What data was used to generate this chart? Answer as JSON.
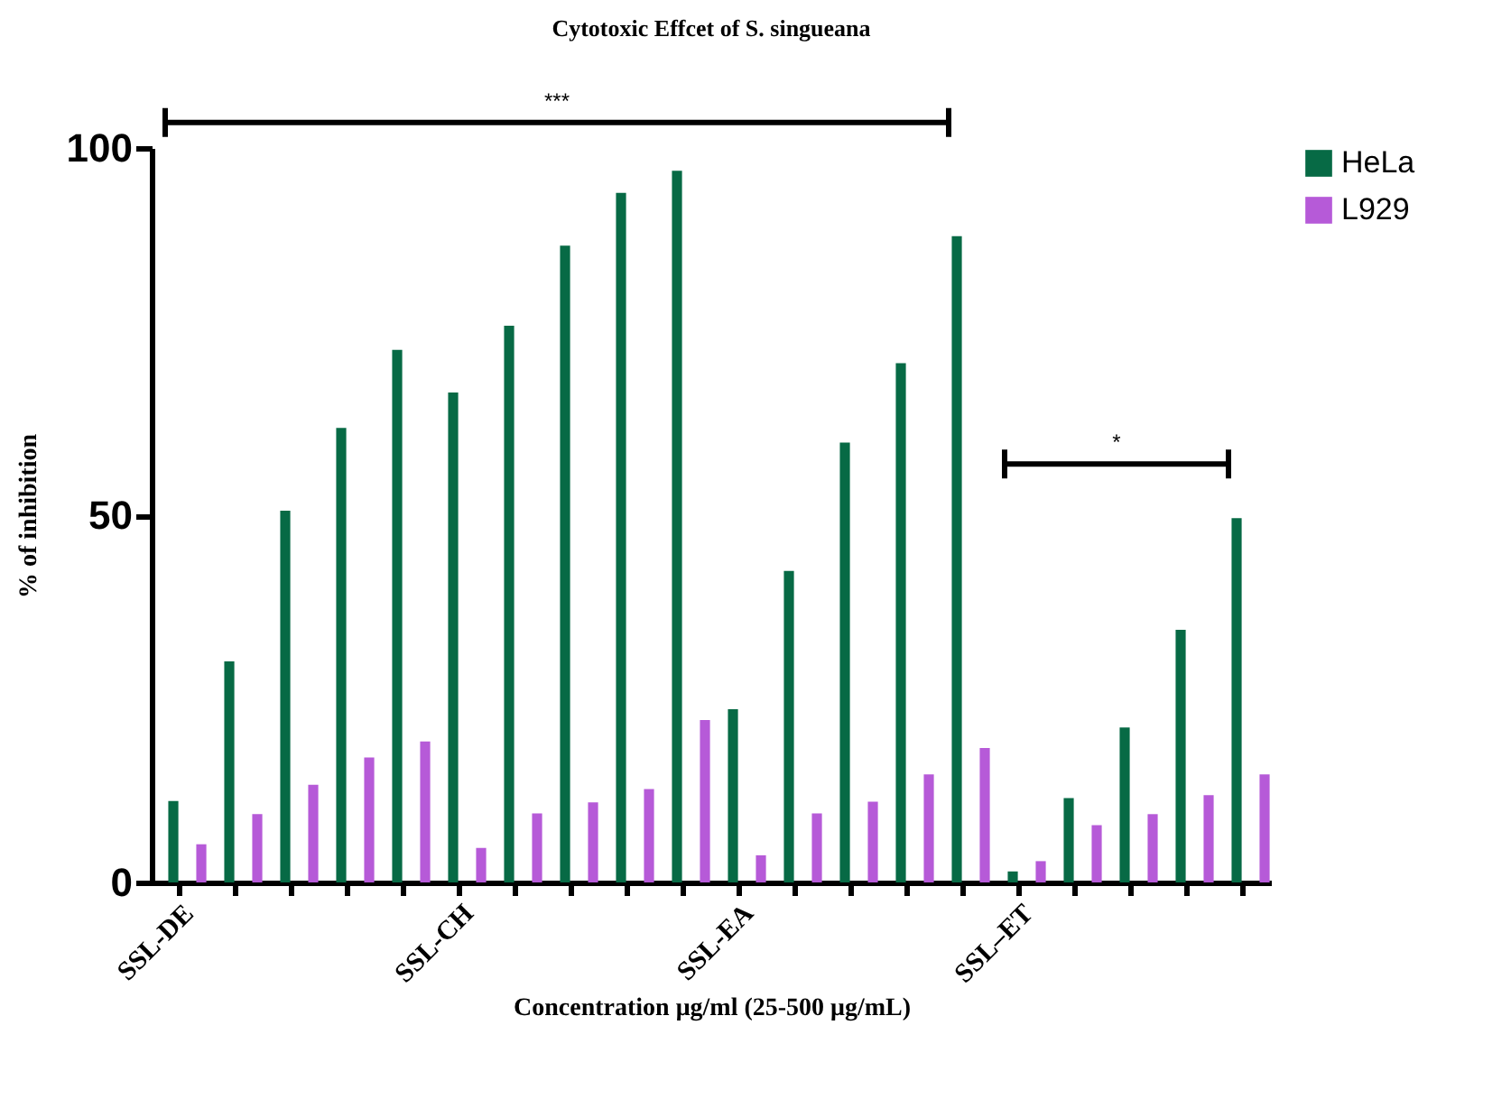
{
  "chart_data": {
    "type": "bar",
    "title": "Cytotoxic Effcet of S. singueana",
    "xlabel": "Concentration μg/ml (25-500 μg/mL)",
    "ylabel": "% of inhibition",
    "categories": [
      "SSL-DE",
      null,
      null,
      null,
      null,
      "SSL-CH",
      null,
      null,
      null,
      null,
      "SSL-EA",
      null,
      null,
      null,
      null,
      "SSL–ET",
      null,
      null,
      null,
      null
    ],
    "series": [
      {
        "name": "HeLa",
        "color": "#076a45",
        "values": [
          11.1,
          30.1,
          50.6,
          61.9,
          72.5,
          66.7,
          75.8,
          86.7,
          93.9,
          96.9,
          23.6,
          42.4,
          59.9,
          70.7,
          88,
          1.5,
          11.5,
          21.1,
          34.4,
          49.6
        ]
      },
      {
        "name": "L929",
        "color": "#b65ad8",
        "values": [
          5.2,
          9.3,
          13.3,
          17,
          19.2,
          4.7,
          9.4,
          10.9,
          12.7,
          22.1,
          3.7,
          9.4,
          11,
          14.7,
          18.3,
          2.9,
          7.8,
          9.3,
          11.9,
          14.7
        ]
      }
    ],
    "ylim": [
      0,
      100
    ],
    "yticks": [
      0,
      50,
      100
    ],
    "grid": false,
    "legend": "top right",
    "annotations": [
      "***",
      "*"
    ]
  }
}
